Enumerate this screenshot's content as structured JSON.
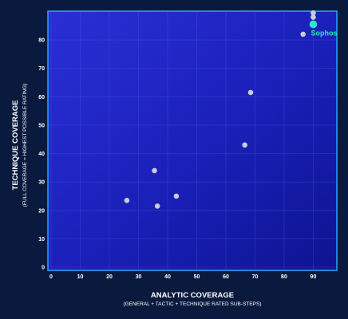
{
  "chart_data": {
    "type": "scatter",
    "xlabel": "ANALYTIC COVERAGE",
    "xlabel_sub": "(GENERAL + TACTIC + TECHNIQUE RATED SUB-STEPS)",
    "ylabel": "TECHNIQUE COVERAGE",
    "ylabel_sub": "(FULL COVERAGE = HIGHEST POSSIBLE RATING)",
    "xlim": [
      0,
      97
    ],
    "ylim": [
      0,
      89
    ],
    "x_ticks": [
      0,
      10,
      20,
      30,
      40,
      50,
      60,
      70,
      80,
      90
    ],
    "y_ticks": [
      0,
      10,
      20,
      30,
      40,
      50,
      60,
      70,
      80
    ],
    "grid": true,
    "points": [
      {
        "x": 26,
        "y": 23.5
      },
      {
        "x": 36.5,
        "y": 21.5
      },
      {
        "x": 43,
        "y": 25
      },
      {
        "x": 35.5,
        "y": 34
      },
      {
        "x": 66.5,
        "y": 43
      },
      {
        "x": 68.5,
        "y": 61.5
      },
      {
        "x": 86.5,
        "y": 82
      },
      {
        "x": 90,
        "y": 88
      },
      {
        "x": 90,
        "y": 89.5
      }
    ],
    "highlight": {
      "label": "Sophos",
      "x": 90,
      "y": 85.5,
      "color": "#2ee6c0"
    },
    "point_color": "#c8cdd8"
  }
}
